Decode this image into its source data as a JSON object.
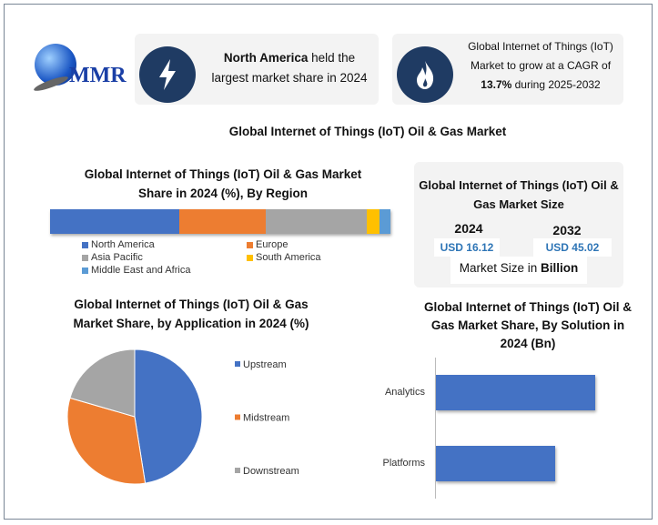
{
  "logo": {
    "text": "MMR"
  },
  "card1": {
    "bold": "North America",
    "rest": " held the",
    "line2": "largest market share in 2024",
    "icon": "lightning-icon"
  },
  "card2": {
    "line1": "Global Internet of Things (IoT)",
    "line2": "Market to grow at a CAGR of",
    "bold": "13.7%",
    "rest": " during 2025-2032",
    "icon": "flame-icon"
  },
  "main_title": "Global Internet of Things (IoT) Oil & Gas Market",
  "size_box": {
    "title1": "Global Internet of Things (IoT) Oil &",
    "title2": "Gas Market Size",
    "year1": "2024",
    "value1": "USD 16.12",
    "year2": "2032",
    "value2": "USD 45.02",
    "footer_pre": "Market Size in ",
    "footer_bold": "Billion"
  },
  "colors": {
    "blue": "#4472c4",
    "orange": "#ed7d31",
    "gray": "#a5a5a5",
    "yellow": "#ffc000",
    "lightblue": "#5b9bd5",
    "navy": "#1f3b63"
  },
  "chart_data": [
    {
      "type": "bar",
      "orientation": "horizontal-stacked",
      "title1": "Global Internet of Things (IoT) Oil & Gas Market",
      "title2": "Share in 2024 (%), By Region",
      "categories": [
        "North America",
        "Europe",
        "Asia Pacific",
        "South America",
        "Middle East and Africa"
      ],
      "values": [
        38,
        25.5,
        29.5,
        3.7,
        3.3
      ],
      "legend": "bottom"
    },
    {
      "type": "pie",
      "title1": "Global Internet of Things (IoT) Oil & Gas",
      "title2": "Market Share, by Application in 2024 (%)",
      "categories": [
        "Upstream",
        "Midstream",
        "Downstream"
      ],
      "values": [
        47.5,
        32,
        20.5
      ],
      "legend": "right"
    },
    {
      "type": "bar",
      "orientation": "horizontal",
      "title1": "Global Internet of Things (IoT) Oil &",
      "title2": "Gas Market Share, By Solution in",
      "title3": "2024 (Bn)",
      "categories": [
        "Analytics",
        "Platforms"
      ],
      "values": [
        1.0,
        0.75
      ],
      "note": "relative values; no axis shown"
    }
  ]
}
